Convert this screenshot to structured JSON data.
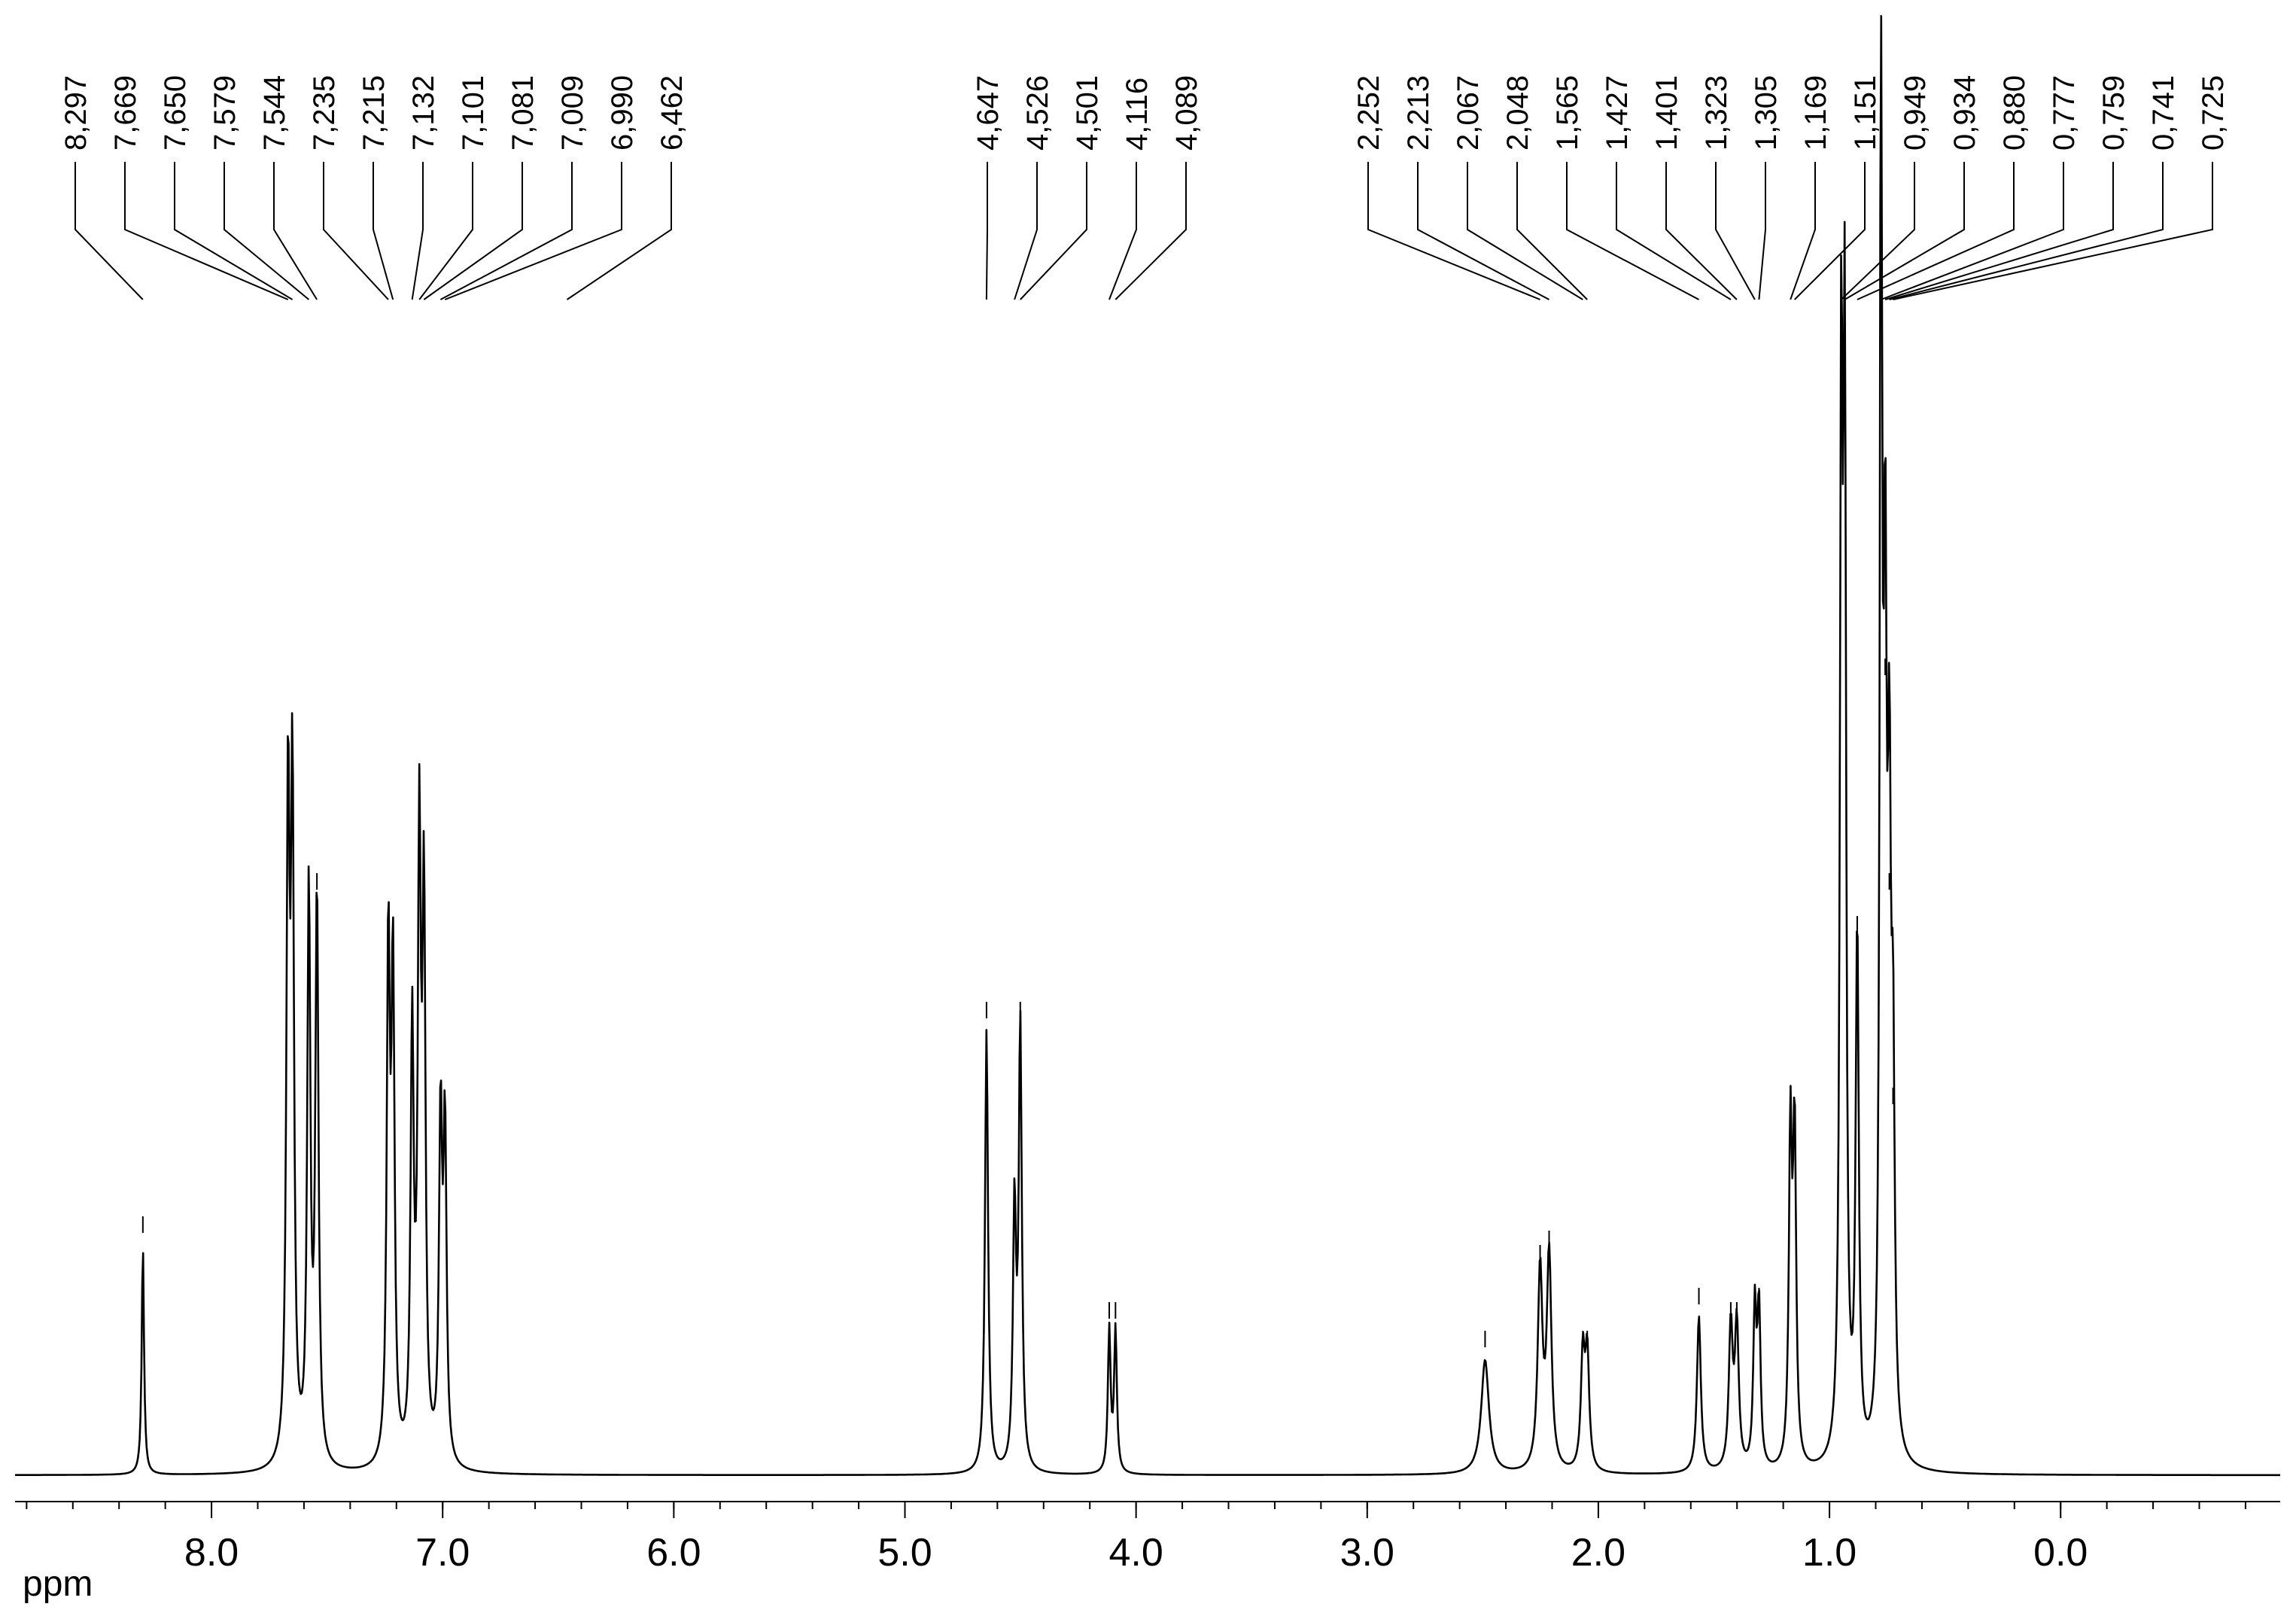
{
  "chart_data": {
    "type": "line",
    "x_unit_label": "ppm",
    "x_axis_reversed": true,
    "xlim": [
      8.85,
      -0.95
    ],
    "x_ticks": [
      {
        "value": 8.0,
        "label": "8.0"
      },
      {
        "value": 7.0,
        "label": "7.0"
      },
      {
        "value": 6.0,
        "label": "6.0"
      },
      {
        "value": 5.0,
        "label": "5.0"
      },
      {
        "value": 4.0,
        "label": "4.0"
      },
      {
        "value": 3.0,
        "label": "3.0"
      },
      {
        "value": 2.0,
        "label": "2.0"
      },
      {
        "value": 1.0,
        "label": "1.0"
      },
      {
        "value": 0.0,
        "label": "0.0"
      }
    ],
    "ylim": [
      0,
      1.0
    ],
    "peak_labels": [
      {
        "label": "8,297",
        "ppm": 8.297
      },
      {
        "label": "7,669",
        "ppm": 7.669
      },
      {
        "label": "7,650",
        "ppm": 7.65
      },
      {
        "label": "7,579",
        "ppm": 7.579
      },
      {
        "label": "7,544",
        "ppm": 7.544
      },
      {
        "label": "7,235",
        "ppm": 7.235
      },
      {
        "label": "7,215",
        "ppm": 7.215
      },
      {
        "label": "7,132",
        "ppm": 7.132
      },
      {
        "label": "7,101",
        "ppm": 7.101
      },
      {
        "label": "7,081",
        "ppm": 7.081
      },
      {
        "label": "7,009",
        "ppm": 7.009
      },
      {
        "label": "6,990",
        "ppm": 6.99
      },
      {
        "label": "6,462",
        "ppm": 6.462
      },
      {
        "label": "4,647",
        "ppm": 4.647
      },
      {
        "label": "4,526",
        "ppm": 4.526
      },
      {
        "label": "4,501",
        "ppm": 4.501
      },
      {
        "label": "4,116",
        "ppm": 4.116
      },
      {
        "label": "4,089",
        "ppm": 4.089
      },
      {
        "label": "2,252",
        "ppm": 2.252
      },
      {
        "label": "2,213",
        "ppm": 2.213
      },
      {
        "label": "2,067",
        "ppm": 2.067
      },
      {
        "label": "2,048",
        "ppm": 2.048
      },
      {
        "label": "1,565",
        "ppm": 1.565
      },
      {
        "label": "1,427",
        "ppm": 1.427
      },
      {
        "label": "1,401",
        "ppm": 1.401
      },
      {
        "label": "1,323",
        "ppm": 1.323
      },
      {
        "label": "1,305",
        "ppm": 1.305
      },
      {
        "label": "1,169",
        "ppm": 1.169
      },
      {
        "label": "1,151",
        "ppm": 1.151
      },
      {
        "label": "0,949",
        "ppm": 0.949
      },
      {
        "label": "0,934",
        "ppm": 0.934
      },
      {
        "label": "0,880",
        "ppm": 0.88
      },
      {
        "label": "0,777",
        "ppm": 0.777
      },
      {
        "label": "0,759",
        "ppm": 0.759
      },
      {
        "label": "0,741",
        "ppm": 0.741
      },
      {
        "label": "0,725",
        "ppm": 0.725
      }
    ],
    "peaks": [
      {
        "ppm": 8.297,
        "height": 0.16,
        "width": 0.006
      },
      {
        "ppm": 7.669,
        "height": 0.46,
        "width": 0.008
      },
      {
        "ppm": 7.65,
        "height": 0.46,
        "width": 0.008
      },
      {
        "ppm": 7.579,
        "height": 0.4,
        "width": 0.008
      },
      {
        "ppm": 7.544,
        "height": 0.4,
        "width": 0.008
      },
      {
        "ppm": 7.235,
        "height": 0.36,
        "width": 0.008
      },
      {
        "ppm": 7.215,
        "height": 0.34,
        "width": 0.008
      },
      {
        "ppm": 7.132,
        "height": 0.3,
        "width": 0.008
      },
      {
        "ppm": 7.101,
        "height": 0.42,
        "width": 0.008
      },
      {
        "ppm": 7.081,
        "height": 0.38,
        "width": 0.008
      },
      {
        "ppm": 7.009,
        "height": 0.24,
        "width": 0.008
      },
      {
        "ppm": 6.99,
        "height": 0.23,
        "width": 0.008
      },
      {
        "ppm": 4.647,
        "height": 0.31,
        "width": 0.008
      },
      {
        "ppm": 4.526,
        "height": 0.18,
        "width": 0.008
      },
      {
        "ppm": 4.501,
        "height": 0.31,
        "width": 0.008
      },
      {
        "ppm": 4.116,
        "height": 0.1,
        "width": 0.007
      },
      {
        "ppm": 4.089,
        "height": 0.1,
        "width": 0.007
      },
      {
        "ppm": 2.49,
        "height": 0.08,
        "width": 0.02
      },
      {
        "ppm": 2.252,
        "height": 0.14,
        "width": 0.012
      },
      {
        "ppm": 2.213,
        "height": 0.15,
        "width": 0.012
      },
      {
        "ppm": 2.067,
        "height": 0.08,
        "width": 0.01
      },
      {
        "ppm": 2.048,
        "height": 0.08,
        "width": 0.01
      },
      {
        "ppm": 1.565,
        "height": 0.11,
        "width": 0.01
      },
      {
        "ppm": 1.427,
        "height": 0.1,
        "width": 0.01
      },
      {
        "ppm": 1.401,
        "height": 0.1,
        "width": 0.01
      },
      {
        "ppm": 1.323,
        "height": 0.11,
        "width": 0.008
      },
      {
        "ppm": 1.305,
        "height": 0.11,
        "width": 0.008
      },
      {
        "ppm": 1.169,
        "height": 0.23,
        "width": 0.008
      },
      {
        "ppm": 1.151,
        "height": 0.23,
        "width": 0.008
      },
      {
        "ppm": 0.949,
        "height": 0.73,
        "width": 0.007
      },
      {
        "ppm": 0.934,
        "height": 0.73,
        "width": 0.007
      },
      {
        "ppm": 0.88,
        "height": 0.37,
        "width": 0.008
      },
      {
        "ppm": 0.777,
        "height": 1.0,
        "width": 0.006
      },
      {
        "ppm": 0.759,
        "height": 0.55,
        "width": 0.008
      },
      {
        "ppm": 0.741,
        "height": 0.4,
        "width": 0.008
      },
      {
        "ppm": 0.725,
        "height": 0.25,
        "width": 0.008
      }
    ]
  }
}
